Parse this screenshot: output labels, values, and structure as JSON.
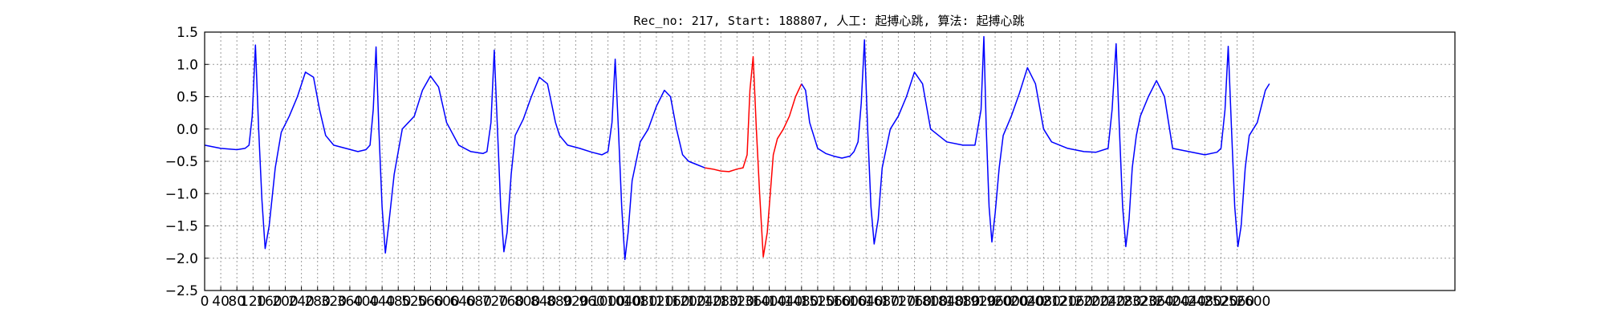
{
  "chart_data": {
    "type": "line",
    "title": "Rec_no: 217, Start: 188807, 人工: 起搏心跳, 算法: 起搏心跳",
    "xlabel": "",
    "ylabel": "",
    "xlim": [
      0,
      3100
    ],
    "ylim": [
      -2.5,
      1.5
    ],
    "grid": true,
    "x_ticks": [
      0,
      40,
      80,
      120,
      160,
      200,
      240,
      280,
      320,
      360,
      400,
      440,
      480,
      520,
      560,
      600,
      640,
      680,
      720,
      760,
      800,
      840,
      880,
      920,
      960,
      1000,
      1040,
      1080,
      1120,
      1160,
      1200,
      1240,
      1280,
      1320,
      1360,
      1400,
      1440,
      1480,
      1520,
      1560,
      1600,
      1640,
      1680,
      1720,
      1760,
      1800,
      1840,
      1880,
      1920,
      1960,
      2000,
      2040,
      2080,
      2120,
      2160,
      2200,
      2240,
      2280,
      2320,
      2360,
      2400,
      2440,
      2480,
      2520,
      2560,
      2600
    ],
    "y_ticks": [
      1.5,
      1.0,
      0.5,
      0.0,
      -0.5,
      -1.0,
      -1.5,
      -2.0,
      -2.5
    ],
    "y_tick_labels": [
      "1.5",
      "1.0",
      "0.5",
      "0.0",
      "−0.5",
      "−1.0",
      "−1.5",
      "−2.0",
      "−2.5"
    ],
    "series": [
      {
        "color": "#0000ff",
        "segment": "before",
        "x": [
          0,
          40,
          80,
          100,
          110,
          118,
          126,
          134,
          142,
          150,
          160,
          175,
          190,
          210,
          230,
          250,
          270,
          285,
          300,
          320,
          350,
          380,
          400,
          410,
          418,
          425,
          432,
          440,
          448,
          456,
          470,
          490,
          520,
          540,
          560,
          580,
          600,
          630,
          660,
          690,
          700,
          710,
          718,
          726,
          734,
          742,
          750,
          760,
          770,
          790,
          810,
          830,
          850,
          870,
          880,
          900,
          930,
          960,
          985,
          1000,
          1010,
          1018,
          1026,
          1034,
          1042,
          1050,
          1060,
          1080,
          1100,
          1120,
          1140,
          1155,
          1170,
          1185,
          1200,
          1220,
          1240
        ],
        "y": [
          -0.25,
          -0.3,
          -0.32,
          -0.3,
          -0.25,
          0.2,
          1.3,
          0.0,
          -1.1,
          -1.85,
          -1.5,
          -0.6,
          -0.05,
          0.2,
          0.5,
          0.88,
          0.8,
          0.3,
          -0.1,
          -0.25,
          -0.3,
          -0.35,
          -0.32,
          -0.25,
          0.3,
          1.27,
          0.0,
          -1.2,
          -1.92,
          -1.5,
          -0.7,
          0.0,
          0.2,
          0.6,
          0.82,
          0.65,
          0.1,
          -0.25,
          -0.35,
          -0.38,
          -0.35,
          0.1,
          1.22,
          0.0,
          -1.2,
          -1.9,
          -1.6,
          -0.7,
          -0.1,
          0.15,
          0.5,
          0.8,
          0.7,
          0.1,
          -0.1,
          -0.25,
          -0.3,
          -0.36,
          -0.4,
          -0.35,
          0.1,
          1.08,
          0.0,
          -1.2,
          -2.02,
          -1.6,
          -0.8,
          -0.2,
          0.0,
          0.35,
          0.6,
          0.5,
          0.0,
          -0.4,
          -0.5,
          -0.55,
          -0.6
        ]
      },
      {
        "color": "#ff0000",
        "segment": "highlighted",
        "x": [
          1240,
          1260,
          1280,
          1300,
          1320,
          1335,
          1345,
          1352,
          1360,
          1368,
          1376,
          1385,
          1395,
          1410,
          1420,
          1435,
          1450,
          1465,
          1480
        ],
        "y": [
          -0.6,
          -0.62,
          -0.65,
          -0.66,
          -0.62,
          -0.6,
          -0.4,
          0.6,
          1.12,
          0.0,
          -1.0,
          -1.98,
          -1.6,
          -0.4,
          -0.15,
          0.0,
          0.2,
          0.5,
          0.7
        ]
      },
      {
        "color": "#0000ff",
        "segment": "after",
        "x": [
          1480,
          1490,
          1500,
          1520,
          1540,
          1560,
          1580,
          1600,
          1610,
          1620,
          1628,
          1636,
          1644,
          1652,
          1660,
          1670,
          1680,
          1700,
          1720,
          1740,
          1760,
          1780,
          1800,
          1840,
          1880,
          1910,
          1925,
          1932,
          1938,
          1945,
          1952,
          1960,
          1970,
          1980,
          2000,
          2020,
          2040,
          2060,
          2080,
          2100,
          2140,
          2180,
          2210,
          2240,
          2250,
          2260,
          2268,
          2276,
          2284,
          2292,
          2300,
          2310,
          2320,
          2340,
          2360,
          2380,
          2400,
          2440,
          2480,
          2510,
          2520,
          2530,
          2538,
          2546,
          2554,
          2562,
          2570,
          2580,
          2590,
          2610,
          2630,
          2640
        ],
        "y": [
          0.7,
          0.6,
          0.1,
          -0.3,
          -0.38,
          -0.42,
          -0.45,
          -0.42,
          -0.35,
          -0.2,
          0.4,
          1.38,
          0.0,
          -1.2,
          -1.78,
          -1.4,
          -0.6,
          0.0,
          0.2,
          0.5,
          0.88,
          0.7,
          0.0,
          -0.2,
          -0.25,
          -0.25,
          0.3,
          1.43,
          0.0,
          -1.2,
          -1.75,
          -1.3,
          -0.6,
          -0.1,
          0.2,
          0.55,
          0.95,
          0.7,
          0.0,
          -0.2,
          -0.3,
          -0.35,
          -0.36,
          -0.3,
          0.3,
          1.32,
          0.0,
          -1.2,
          -1.82,
          -1.4,
          -0.6,
          -0.1,
          0.2,
          0.5,
          0.75,
          0.5,
          -0.3,
          -0.35,
          -0.4,
          -0.36,
          -0.3,
          0.3,
          1.28,
          0.0,
          -1.2,
          -1.82,
          -1.5,
          -0.6,
          -0.1,
          0.1,
          0.6,
          0.7
        ]
      }
    ]
  }
}
